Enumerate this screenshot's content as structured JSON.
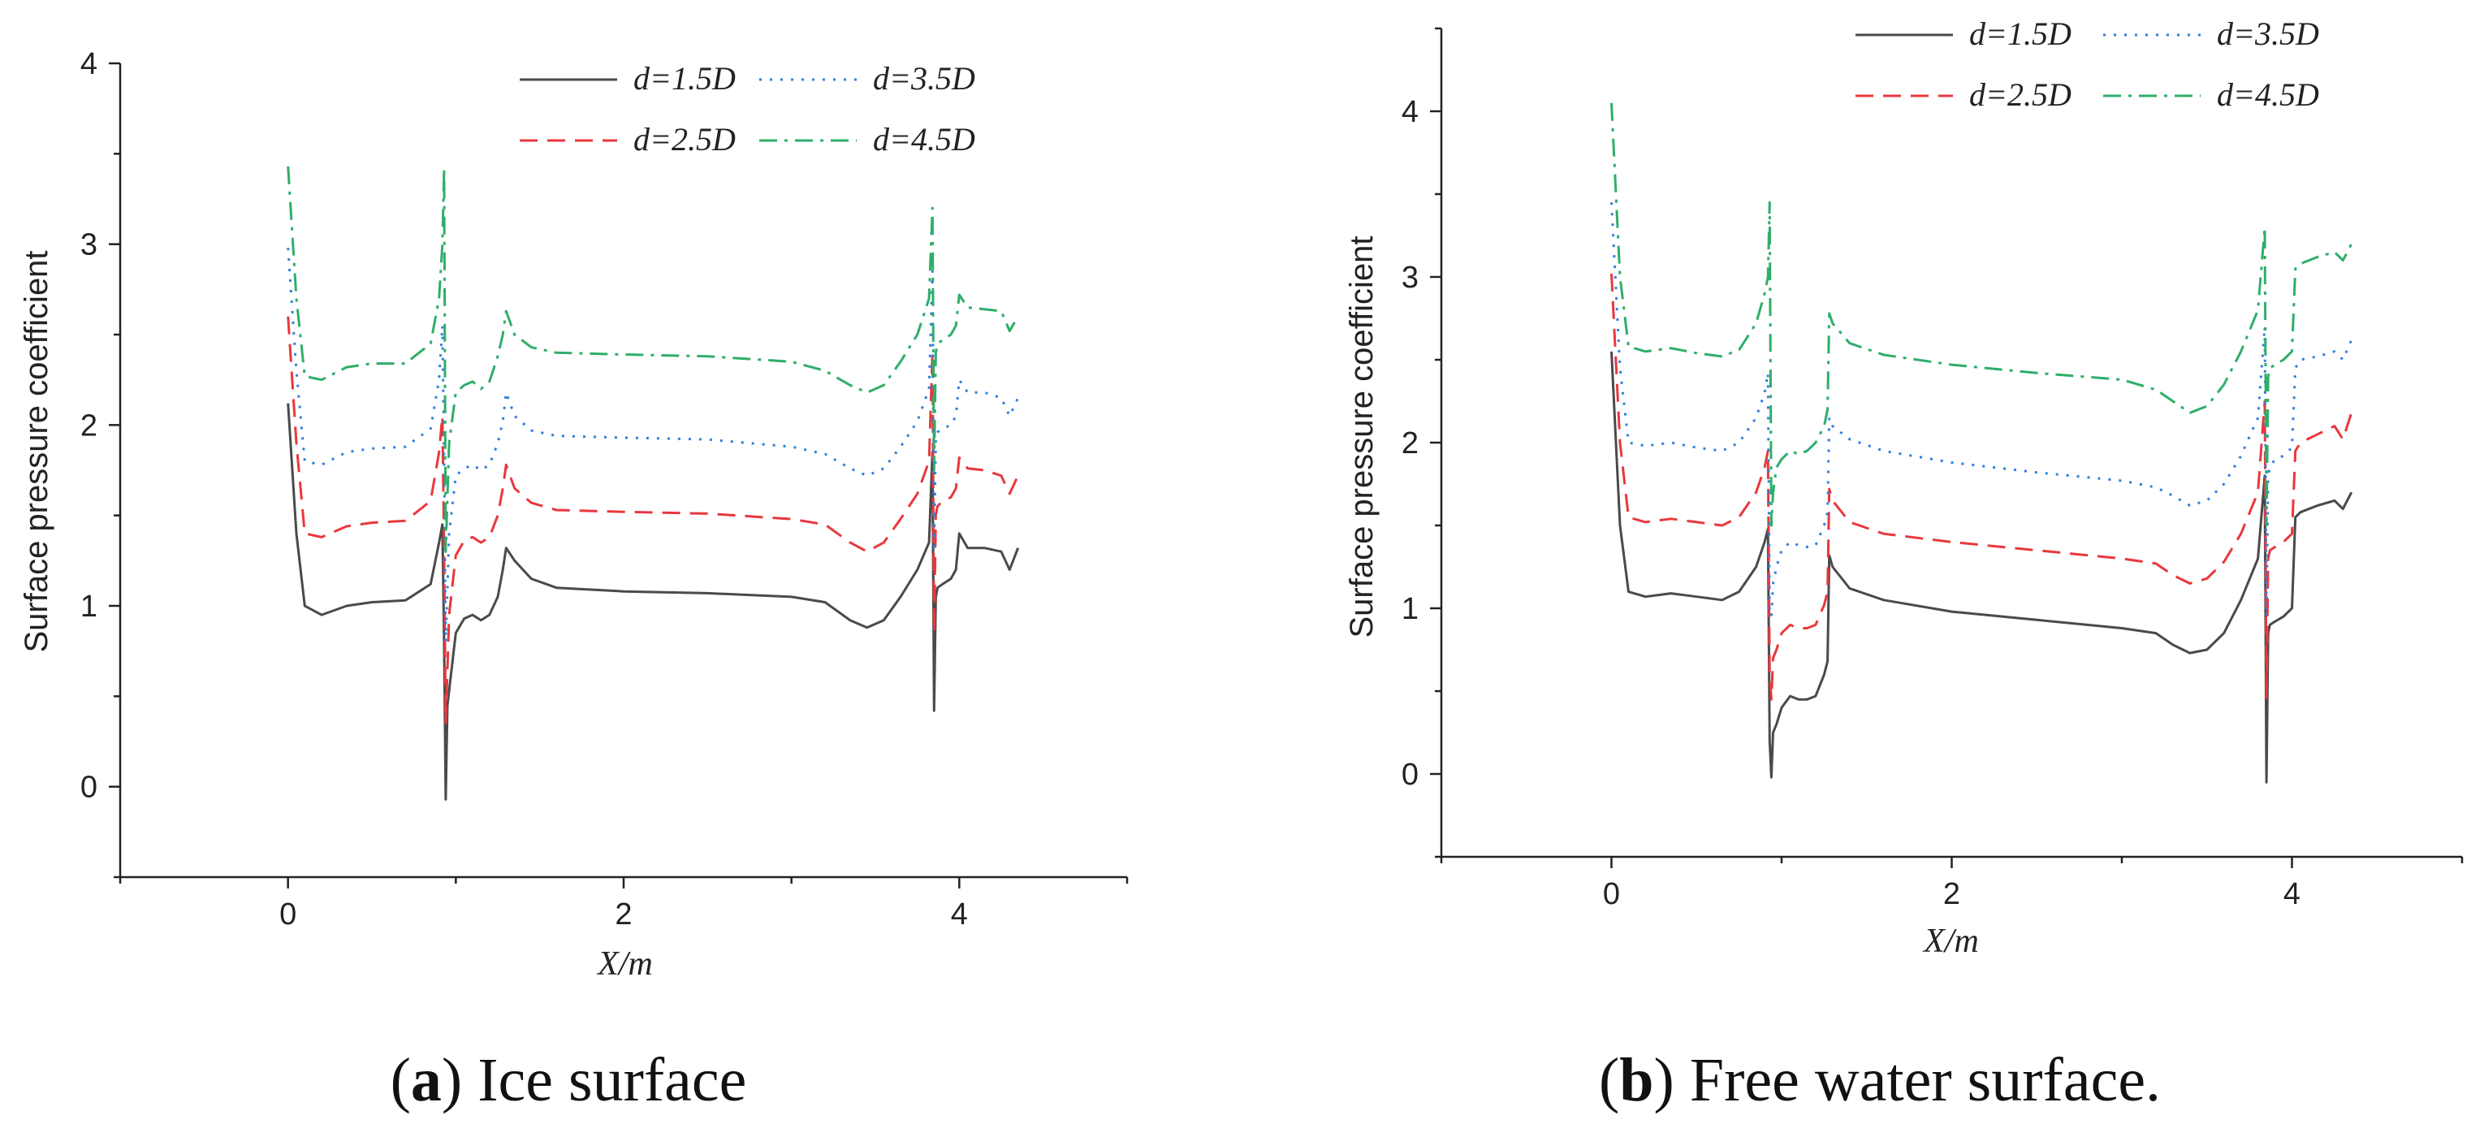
{
  "chart_data": [
    {
      "id": "a",
      "type": "line",
      "caption_letter": "a",
      "caption_text": "Ice surface",
      "xlabel": "X/m",
      "ylabel": "Surface pressure coefficient",
      "xlim": [
        -1,
        5
      ],
      "ylim": [
        -0.5,
        4
      ],
      "xticks": [
        0,
        2,
        4
      ],
      "yticks": [
        0,
        1,
        2,
        3,
        4
      ],
      "legend_position": "top-right",
      "series": [
        {
          "name": "d=1.5D",
          "color": "#4a4a4a",
          "dash": "solid",
          "x": [
            0,
            0.05,
            0.1,
            0.2,
            0.35,
            0.5,
            0.7,
            0.85,
            0.9,
            0.92,
            0.93,
            0.94,
            0.95,
            1.0,
            1.05,
            1.1,
            1.15,
            1.2,
            1.25,
            1.28,
            1.3,
            1.35,
            1.45,
            1.6,
            2.0,
            2.5,
            3.0,
            3.2,
            3.35,
            3.45,
            3.55,
            3.65,
            3.75,
            3.82,
            3.84,
            3.85,
            3.86,
            3.87,
            3.9,
            3.95,
            3.98,
            4.0,
            4.05,
            4.15,
            4.25,
            4.3,
            4.35
          ],
          "y": [
            2.12,
            1.4,
            1.0,
            0.95,
            1.0,
            1.02,
            1.03,
            1.12,
            1.35,
            1.45,
            0.8,
            -0.07,
            0.45,
            0.85,
            0.93,
            0.95,
            0.92,
            0.95,
            1.05,
            1.2,
            1.32,
            1.25,
            1.15,
            1.1,
            1.08,
            1.07,
            1.05,
            1.02,
            0.92,
            0.88,
            0.92,
            1.05,
            1.2,
            1.35,
            1.85,
            0.42,
            1.05,
            1.1,
            1.12,
            1.15,
            1.2,
            1.4,
            1.32,
            1.32,
            1.3,
            1.2,
            1.32
          ]
        },
        {
          "name": "d=2.5D",
          "color": "#e8383d",
          "dash": "dashed",
          "x": [
            0,
            0.05,
            0.1,
            0.2,
            0.35,
            0.5,
            0.7,
            0.85,
            0.9,
            0.92,
            0.93,
            0.94,
            0.96,
            1.0,
            1.05,
            1.1,
            1.15,
            1.2,
            1.25,
            1.28,
            1.3,
            1.35,
            1.45,
            1.6,
            2.0,
            2.5,
            3.0,
            3.2,
            3.35,
            3.45,
            3.55,
            3.65,
            3.75,
            3.82,
            3.84,
            3.85,
            3.86,
            3.87,
            3.9,
            3.95,
            3.98,
            4.0,
            4.05,
            4.15,
            4.25,
            4.3,
            4.35
          ],
          "y": [
            2.6,
            1.9,
            1.4,
            1.38,
            1.44,
            1.46,
            1.47,
            1.58,
            1.85,
            2.05,
            1.3,
            0.35,
            0.95,
            1.28,
            1.36,
            1.38,
            1.35,
            1.38,
            1.5,
            1.65,
            1.78,
            1.65,
            1.57,
            1.53,
            1.52,
            1.51,
            1.48,
            1.45,
            1.35,
            1.3,
            1.35,
            1.48,
            1.62,
            1.8,
            2.4,
            0.85,
            1.5,
            1.55,
            1.58,
            1.6,
            1.65,
            1.82,
            1.76,
            1.75,
            1.72,
            1.62,
            1.72
          ]
        },
        {
          "name": "d=3.5D",
          "color": "#2f7fe0",
          "dash": "dotted",
          "x": [
            0,
            0.05,
            0.1,
            0.2,
            0.35,
            0.5,
            0.7,
            0.85,
            0.9,
            0.92,
            0.93,
            0.94,
            0.96,
            1.0,
            1.05,
            1.1,
            1.15,
            1.2,
            1.25,
            1.28,
            1.3,
            1.35,
            1.45,
            1.6,
            2.0,
            2.5,
            3.0,
            3.2,
            3.35,
            3.45,
            3.55,
            3.65,
            3.75,
            3.82,
            3.84,
            3.85,
            3.86,
            3.87,
            3.9,
            3.95,
            3.98,
            4.0,
            4.05,
            4.15,
            4.25,
            4.3,
            4.35
          ],
          "y": [
            2.98,
            2.3,
            1.8,
            1.78,
            1.85,
            1.87,
            1.88,
            1.98,
            2.25,
            2.55,
            1.8,
            0.8,
            1.4,
            1.72,
            1.76,
            1.78,
            1.75,
            1.78,
            1.9,
            2.02,
            2.18,
            2.05,
            1.97,
            1.94,
            1.93,
            1.92,
            1.88,
            1.84,
            1.76,
            1.72,
            1.76,
            1.88,
            2.02,
            2.2,
            2.85,
            1.3,
            1.92,
            1.96,
            1.98,
            2.0,
            2.05,
            2.25,
            2.18,
            2.18,
            2.15,
            2.05,
            2.15
          ]
        },
        {
          "name": "d=4.5D",
          "color": "#2fae6a",
          "dash": "dashdot",
          "x": [
            0,
            0.05,
            0.1,
            0.2,
            0.35,
            0.5,
            0.7,
            0.85,
            0.9,
            0.92,
            0.93,
            0.94,
            0.96,
            1.0,
            1.05,
            1.1,
            1.15,
            1.2,
            1.25,
            1.28,
            1.3,
            1.35,
            1.45,
            1.6,
            2.0,
            2.5,
            3.0,
            3.2,
            3.35,
            3.45,
            3.55,
            3.65,
            3.75,
            3.82,
            3.84,
            3.85,
            3.86,
            3.87,
            3.9,
            3.95,
            3.98,
            4.0,
            4.05,
            4.15,
            4.25,
            4.3,
            4.35
          ],
          "y": [
            3.43,
            2.7,
            2.27,
            2.25,
            2.32,
            2.34,
            2.34,
            2.45,
            2.7,
            3.0,
            3.42,
            1.3,
            1.9,
            2.18,
            2.22,
            2.24,
            2.2,
            2.24,
            2.38,
            2.5,
            2.63,
            2.5,
            2.43,
            2.4,
            2.39,
            2.38,
            2.35,
            2.3,
            2.22,
            2.18,
            2.22,
            2.35,
            2.5,
            2.7,
            3.2,
            1.75,
            2.4,
            2.45,
            2.47,
            2.5,
            2.55,
            2.72,
            2.65,
            2.64,
            2.63,
            2.52,
            2.6
          ]
        }
      ]
    },
    {
      "id": "b",
      "type": "line",
      "caption_letter": "b",
      "caption_text": "Free water surface.",
      "xlabel": "X/m",
      "ylabel": "Surface pressure coefficient",
      "xlim": [
        -1,
        5
      ],
      "ylim": [
        -0.5,
        4.5
      ],
      "xticks": [
        0,
        2,
        4
      ],
      "yticks": [
        0,
        1,
        2,
        3,
        4
      ],
      "legend_position": "top-right",
      "series": [
        {
          "name": "d=1.5D",
          "color": "#4a4a4a",
          "dash": "solid",
          "x": [
            0,
            0.05,
            0.1,
            0.2,
            0.35,
            0.5,
            0.65,
            0.75,
            0.85,
            0.9,
            0.92,
            0.93,
            0.94,
            0.95,
            0.97,
            1.0,
            1.05,
            1.1,
            1.15,
            1.2,
            1.25,
            1.27,
            1.28,
            1.3,
            1.4,
            1.6,
            2.0,
            2.5,
            3.0,
            3.2,
            3.3,
            3.4,
            3.5,
            3.6,
            3.7,
            3.8,
            3.84,
            3.85,
            3.86,
            3.87,
            3.9,
            3.95,
            4.0,
            4.02,
            4.05,
            4.15,
            4.25,
            4.3,
            4.35
          ],
          "y": [
            2.55,
            1.5,
            1.1,
            1.07,
            1.09,
            1.07,
            1.05,
            1.1,
            1.25,
            1.4,
            1.48,
            0.2,
            -0.02,
            0.25,
            0.3,
            0.4,
            0.47,
            0.45,
            0.45,
            0.47,
            0.6,
            0.68,
            1.32,
            1.25,
            1.12,
            1.05,
            0.98,
            0.93,
            0.88,
            0.85,
            0.78,
            0.73,
            0.75,
            0.85,
            1.05,
            1.3,
            1.8,
            -0.05,
            0.85,
            0.9,
            0.92,
            0.95,
            1.0,
            1.55,
            1.58,
            1.62,
            1.65,
            1.6,
            1.7
          ]
        },
        {
          "name": "d=2.5D",
          "color": "#e8383d",
          "dash": "dashed",
          "x": [
            0,
            0.05,
            0.1,
            0.2,
            0.35,
            0.5,
            0.65,
            0.75,
            0.85,
            0.9,
            0.92,
            0.93,
            0.94,
            0.95,
            0.97,
            1.0,
            1.05,
            1.1,
            1.15,
            1.2,
            1.25,
            1.27,
            1.28,
            1.3,
            1.4,
            1.6,
            2.0,
            2.5,
            3.0,
            3.2,
            3.3,
            3.4,
            3.5,
            3.6,
            3.7,
            3.8,
            3.84,
            3.85,
            3.86,
            3.87,
            3.9,
            3.95,
            4.0,
            4.02,
            4.05,
            4.15,
            4.25,
            4.3,
            4.35
          ],
          "y": [
            3.02,
            2.0,
            1.55,
            1.52,
            1.54,
            1.52,
            1.5,
            1.55,
            1.7,
            1.85,
            1.95,
            0.6,
            0.45,
            0.7,
            0.75,
            0.85,
            0.9,
            0.88,
            0.88,
            0.9,
            1.02,
            1.1,
            1.72,
            1.65,
            1.52,
            1.45,
            1.4,
            1.35,
            1.3,
            1.27,
            1.2,
            1.15,
            1.18,
            1.28,
            1.45,
            1.7,
            2.25,
            0.45,
            1.3,
            1.35,
            1.37,
            1.4,
            1.45,
            1.95,
            2.0,
            2.05,
            2.1,
            2.02,
            2.18
          ]
        },
        {
          "name": "d=3.5D",
          "color": "#2f7fe0",
          "dash": "dotted",
          "x": [
            0,
            0.05,
            0.1,
            0.2,
            0.35,
            0.5,
            0.65,
            0.75,
            0.85,
            0.9,
            0.92,
            0.93,
            0.94,
            0.95,
            0.97,
            1.0,
            1.05,
            1.1,
            1.15,
            1.2,
            1.25,
            1.27,
            1.28,
            1.3,
            1.4,
            1.6,
            2.0,
            2.5,
            3.0,
            3.2,
            3.3,
            3.4,
            3.5,
            3.6,
            3.7,
            3.8,
            3.84,
            3.85,
            3.86,
            3.87,
            3.9,
            3.95,
            4.0,
            4.02,
            4.05,
            4.15,
            4.25,
            4.3,
            4.35
          ],
          "y": [
            3.45,
            2.45,
            2.0,
            1.98,
            2.0,
            1.97,
            1.95,
            2.0,
            2.15,
            2.3,
            2.42,
            1.0,
            0.95,
            1.15,
            1.25,
            1.35,
            1.4,
            1.38,
            1.37,
            1.38,
            1.5,
            1.58,
            2.15,
            2.1,
            2.02,
            1.95,
            1.88,
            1.82,
            1.77,
            1.73,
            1.68,
            1.62,
            1.65,
            1.75,
            1.92,
            2.15,
            2.7,
            0.95,
            1.8,
            1.85,
            1.9,
            1.92,
            1.97,
            2.45,
            2.5,
            2.52,
            2.55,
            2.5,
            2.62
          ]
        },
        {
          "name": "d=4.5D",
          "color": "#2fae6a",
          "dash": "dashdot",
          "x": [
            0,
            0.05,
            0.1,
            0.2,
            0.35,
            0.5,
            0.65,
            0.75,
            0.85,
            0.9,
            0.92,
            0.93,
            0.94,
            0.95,
            0.97,
            1.0,
            1.05,
            1.1,
            1.15,
            1.2,
            1.25,
            1.27,
            1.28,
            1.3,
            1.4,
            1.6,
            2.0,
            2.5,
            3.0,
            3.2,
            3.3,
            3.4,
            3.5,
            3.6,
            3.7,
            3.8,
            3.84,
            3.85,
            3.86,
            3.87,
            3.9,
            3.95,
            4.0,
            4.02,
            4.05,
            4.15,
            4.25,
            4.3,
            4.35
          ],
          "y": [
            4.05,
            3.0,
            2.58,
            2.55,
            2.57,
            2.54,
            2.52,
            2.56,
            2.72,
            2.9,
            3.0,
            3.45,
            1.5,
            1.7,
            1.85,
            1.9,
            1.95,
            1.93,
            1.95,
            2.0,
            2.1,
            2.2,
            2.78,
            2.72,
            2.6,
            2.53,
            2.47,
            2.42,
            2.38,
            2.32,
            2.25,
            2.18,
            2.22,
            2.35,
            2.55,
            2.8,
            3.3,
            1.5,
            2.4,
            2.45,
            2.47,
            2.5,
            2.55,
            3.05,
            3.08,
            3.12,
            3.15,
            3.1,
            3.2
          ]
        }
      ]
    }
  ]
}
